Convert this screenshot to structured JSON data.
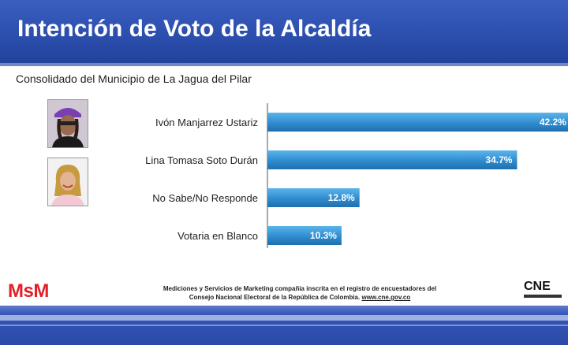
{
  "header": {
    "title": "Intención de Voto de la Alcaldía"
  },
  "subtitle": "Consolidado del Municipio de La Jagua del Pilar",
  "chart_data": {
    "type": "bar",
    "orientation": "horizontal",
    "categories": [
      "Ivón Manjarrez Ustariz",
      "Lina Tomasa Soto Durán",
      "No Sabe/No Responde",
      "Votaria en Blanco"
    ],
    "values": [
      42.2,
      34.7,
      12.8,
      10.3
    ],
    "value_labels": [
      "42.2%",
      "34.7%",
      "12.8%",
      "10.3%"
    ],
    "xlim": [
      0,
      50
    ],
    "grid": false,
    "colors": {
      "bar_top": "#5bb4ea",
      "bar_bottom": "#1f6fae",
      "axis": "#555555"
    }
  },
  "footer": {
    "logo": "MsM",
    "line1": "Mediciones y Servicios de Marketing compañia inscrita en el registro de encuestadores del",
    "line2": "Consejo Nacional Electoral de la República de Colombia.",
    "link": "www.cne.gov.co",
    "cne_logo": "CNE"
  },
  "colors": {
    "header": "#2c4fae",
    "logo_red": "#e11f26"
  }
}
